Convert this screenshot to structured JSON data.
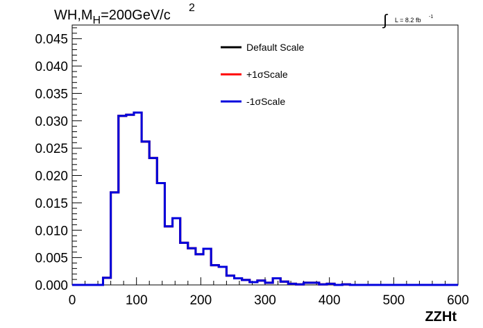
{
  "chart_data": {
    "type": "histogram",
    "title": "WH,M",
    "title_subscript": "H",
    "title_suffix": "=200GeV/c",
    "title_superscript": "2",
    "luminosity": {
      "integral_symbol": "∫",
      "text": "L = 8.2 fb",
      "superscript": "-1"
    },
    "xlabel": "ZZHt",
    "ylabel": "",
    "xlim": [
      0,
      600
    ],
    "ylim": [
      0,
      0.0475
    ],
    "x_ticks": [
      {
        "value": 0,
        "label": "0"
      },
      {
        "value": 100,
        "label": "100"
      },
      {
        "value": 200,
        "label": "200"
      },
      {
        "value": 300,
        "label": "300"
      },
      {
        "value": 400,
        "label": "400"
      },
      {
        "value": 500,
        "label": "500"
      },
      {
        "value": 600,
        "label": "600"
      }
    ],
    "y_ticks": [
      {
        "value": 0,
        "label": "0.000"
      },
      {
        "value": 0.005,
        "label": "0.005"
      },
      {
        "value": 0.01,
        "label": "0.010"
      },
      {
        "value": 0.015,
        "label": "0.015"
      },
      {
        "value": 0.02,
        "label": "0.020"
      },
      {
        "value": 0.025,
        "label": "0.025"
      },
      {
        "value": 0.03,
        "label": "0.030"
      },
      {
        "value": 0.035,
        "label": "0.035"
      },
      {
        "value": 0.04,
        "label": "0.040"
      },
      {
        "value": 0.045,
        "label": "0.045"
      }
    ],
    "bin_width": 12,
    "bin_edges_start": 0,
    "values": [
      0,
      0,
      0,
      0,
      0.0013,
      0.0169,
      0.0309,
      0.0311,
      0.0315,
      0.0262,
      0.0232,
      0.0186,
      0.0107,
      0.0122,
      0.0077,
      0.0067,
      0.0056,
      0.0066,
      0.0036,
      0.0033,
      0.0017,
      0.0012,
      0.0009,
      0.0005,
      0.0008,
      0.0004,
      0.0012,
      0.0006,
      0.0002,
      0.0001,
      0.0004,
      0.0004,
      0.0001,
      0.0002,
      0.0,
      0.0001,
      0.0,
      0,
      0,
      0,
      0,
      0,
      0,
      0,
      0,
      0,
      0,
      0,
      0,
      0
    ],
    "series": [
      {
        "name": "Default Scale",
        "color": "#000000"
      },
      {
        "name": "+1σScale",
        "color": "#ff0000"
      },
      {
        "name": "-1σScale",
        "color": "#0000dd"
      }
    ],
    "legend_position": "top-center",
    "grid": false
  }
}
